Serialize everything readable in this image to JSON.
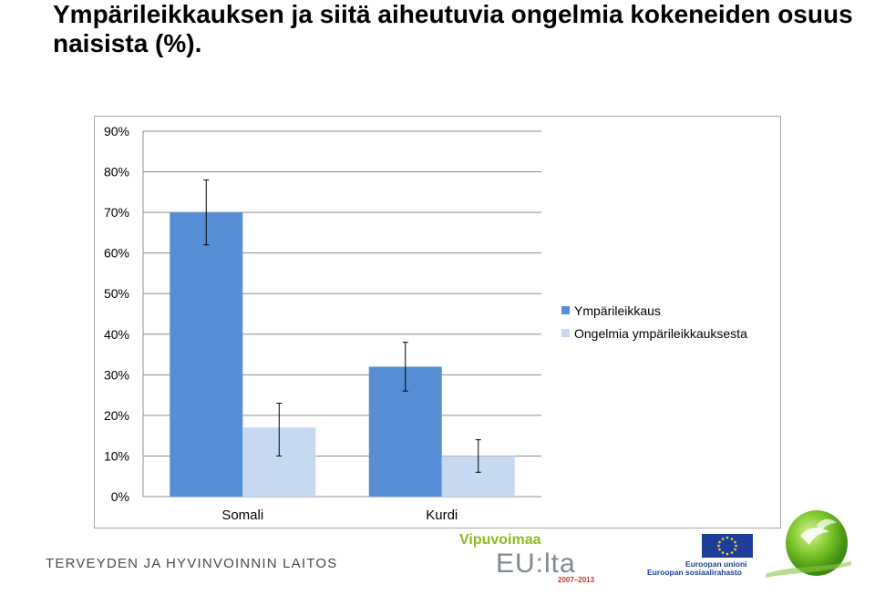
{
  "slide": {
    "title": "Ympärileikkauksen ja siitä aiheutuvia ongelmia kokeneiden osuus naisista (%)."
  },
  "chart_data": {
    "type": "bar",
    "categories": [
      "Somali",
      "Kurdi"
    ],
    "series": [
      {
        "name": "Ympärileikkaus",
        "values": [
          70,
          32
        ],
        "error_low": [
          62,
          26
        ],
        "error_high": [
          78,
          38
        ],
        "color": "#558ed5"
      },
      {
        "name": "Ongelmia ympärileikkauksesta",
        "values": [
          17,
          10
        ],
        "error_low": [
          10,
          6
        ],
        "error_high": [
          23,
          14
        ],
        "color": "#c6d9f1"
      }
    ],
    "yticks": [
      "0%",
      "10%",
      "20%",
      "30%",
      "40%",
      "50%",
      "60%",
      "70%",
      "80%",
      "90%"
    ],
    "ylim": [
      0,
      90
    ],
    "grid": true,
    "legend_position": "right"
  },
  "footer": {
    "institute": "TERVEYDEN JA HYVINVOINNIN LAITOS",
    "logo_vip_top": "Vipuvoimaa",
    "logo_vip_main": "EU:lta",
    "logo_vip_years": "2007–2013",
    "eu_line1": "Euroopan unioni",
    "eu_line2": "Euroopan sosiaalirahasto"
  }
}
